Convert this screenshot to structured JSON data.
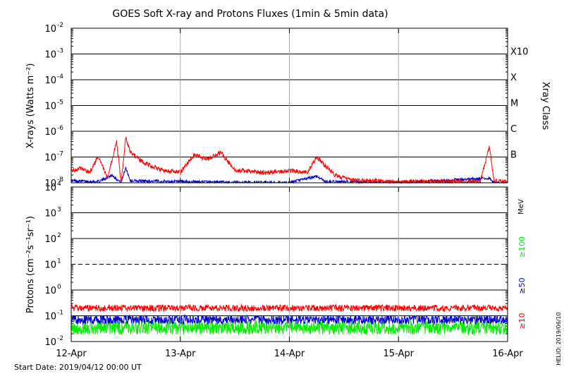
{
  "title": "GOES Soft X-ray and Protons Fluxes   (1min & 5min data)",
  "start_date": "Start Date: 2019/04/12 00:00 UT",
  "credit": "HELIO: 2019/06/10",
  "colors": {
    "red": "#ff0000",
    "blue": "#0000cc",
    "green": "#00ee00",
    "grid": "#000000",
    "day_line": "#aaaaaa"
  },
  "xaxis": {
    "tick_labels": [
      "12-Apr",
      "13-Apr",
      "14-Apr",
      "15-Apr",
      "16-Apr"
    ],
    "xlim": [
      "2019-04-12T00:00",
      "2019-04-16T00:00"
    ]
  },
  "xray_panel": {
    "ylabel": "X-rays (Watts m⁻²)",
    "y_ticks": [
      {
        "base": "10",
        "exp": "-2"
      },
      {
        "base": "10",
        "exp": "-3"
      },
      {
        "base": "10",
        "exp": "-4"
      },
      {
        "base": "10",
        "exp": "-5"
      },
      {
        "base": "10",
        "exp": "-6"
      },
      {
        "base": "10",
        "exp": "-7"
      },
      {
        "base": "10",
        "exp": "-8"
      }
    ],
    "right_axis_title": "Xray Class",
    "classes": [
      "X10",
      "X",
      "M",
      "C",
      "B"
    ]
  },
  "proton_panel": {
    "ylabel": "Protons (cm⁻²s⁻¹sr⁻¹)",
    "y_ticks": [
      {
        "base": "10",
        "exp": "4"
      },
      {
        "base": "10",
        "exp": "3"
      },
      {
        "base": "10",
        "exp": "2"
      },
      {
        "base": "10",
        "exp": "1"
      },
      {
        "base": "10",
        "exp": "0"
      },
      {
        "base": "10",
        "exp": "-1"
      },
      {
        "base": "10",
        "exp": "-2"
      }
    ],
    "unit": "MeV",
    "energy_labels": [
      "≥100",
      "≥50",
      "≥10"
    ]
  },
  "chart_data": [
    {
      "type": "line",
      "ylim": [
        1e-08,
        0.01
      ],
      "yscale": "log",
      "xlim": [
        "2019-04-12T00:00",
        "2019-04-16T00:00"
      ],
      "grid": true,
      "series": [
        {
          "color": "#ff0000",
          "x": [
            "2019-04-12T00:00",
            "2019-04-12T02:00",
            "2019-04-12T04:00",
            "2019-04-12T06:00",
            "2019-04-12T08:00",
            "2019-04-12T10:00",
            "2019-04-12T11:00",
            "2019-04-12T12:00",
            "2019-04-12T13:00",
            "2019-04-12T16:00",
            "2019-04-12T20:00",
            "2019-04-13T00:00",
            "2019-04-13T03:00",
            "2019-04-13T06:00",
            "2019-04-13T09:00",
            "2019-04-13T12:00",
            "2019-04-13T18:00",
            "2019-04-14T00:00",
            "2019-04-14T04:00",
            "2019-04-14T06:00",
            "2019-04-14T10:00",
            "2019-04-14T14:00",
            "2019-04-14T18:00",
            "2019-04-15T00:00",
            "2019-04-15T06:00",
            "2019-04-15T12:00",
            "2019-04-15T18:00",
            "2019-04-15T20:00",
            "2019-04-15T21:00",
            "2019-04-15T22:00",
            "2019-04-16T00:00"
          ],
          "y": [
            3e-08,
            3.5e-08,
            2.5e-08,
            1e-07,
            1.5e-08,
            4e-07,
            1e-08,
            6e-07,
            1.5e-07,
            6e-08,
            3e-08,
            2.5e-08,
            1.2e-07,
            8e-08,
            1.5e-07,
            3e-08,
            2.5e-08,
            3e-08,
            2.5e-08,
            1e-07,
            2e-08,
            1.2e-08,
            1.2e-08,
            1.1e-08,
            1.1e-08,
            1.1e-08,
            1.1e-08,
            2.5e-07,
            1.2e-08,
            1.1e-08,
            1.1e-08
          ]
        },
        {
          "color": "#0000cc",
          "x": [
            "2019-04-12T00:00",
            "2019-04-12T06:00",
            "2019-04-12T09:00",
            "2019-04-12T11:00",
            "2019-04-12T12:00",
            "2019-04-12T13:00",
            "2019-04-13T00:00",
            "2019-04-14T00:00",
            "2019-04-14T06:00",
            "2019-04-14T08:00",
            "2019-04-15T00:00",
            "2019-04-15T20:00",
            "2019-04-15T21:00",
            "2019-04-16T00:00"
          ],
          "y": [
            1.2e-08,
            1.1e-08,
            2e-08,
            1e-08,
            4e-08,
            1.2e-08,
            1.1e-08,
            1e-08,
            1.8e-08,
            1.1e-08,
            1e-08,
            1.5e-08,
            1e-08,
            1e-08
          ]
        }
      ]
    },
    {
      "type": "line",
      "ylim": [
        0.01,
        10000
      ],
      "yscale": "log",
      "xlim": [
        "2019-04-12T00:00",
        "2019-04-16T00:00"
      ],
      "grid": true,
      "threshold": 10,
      "series": [
        {
          "name": "≥10",
          "color": "#ff0000",
          "x": [
            "2019-04-12T00:00",
            "2019-04-16T00:00"
          ],
          "y": [
            0.2,
            0.2
          ]
        },
        {
          "name": "≥50",
          "color": "#0000cc",
          "x": [
            "2019-04-12T00:00",
            "2019-04-16T00:00"
          ],
          "y": [
            0.07,
            0.07
          ]
        },
        {
          "name": "≥100",
          "color": "#00ee00",
          "x": [
            "2019-04-12T00:00",
            "2019-04-16T00:00"
          ],
          "y": [
            0.035,
            0.035
          ]
        }
      ]
    }
  ]
}
